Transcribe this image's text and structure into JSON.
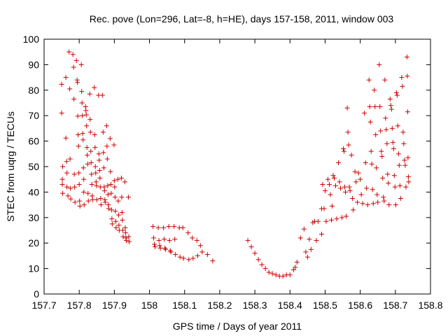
{
  "chart_data": {
    "type": "scatter",
    "title": "Rec. pove (Lon=296, Lat=-8, h=HE), days 157-158, 2011, window 003",
    "xlabel": "GPS time / Days of year 2011",
    "ylabel": "STEC from uqrg / TECUs",
    "xlim": [
      157.7,
      158.8
    ],
    "ylim": [
      0,
      100
    ],
    "xticks": [
      "157.7",
      "157.8",
      "157.9",
      "158",
      "158.1",
      "158.2",
      "158.3",
      "158.4",
      "158.5",
      "158.6",
      "158.7",
      "158.8"
    ],
    "yticks": [
      "0",
      "10",
      "20",
      "30",
      "40",
      "50",
      "60",
      "70",
      "80",
      "90",
      "100"
    ],
    "grid": false,
    "legend": "none",
    "marker": "plus",
    "color": "#cc0000",
    "series": [
      {
        "points": [
          [
            157.75,
            82.3
          ],
          [
            157.75,
            71.0
          ],
          [
            157.752,
            45.0
          ],
          [
            157.752,
            43.0
          ],
          [
            157.753,
            50.0
          ],
          [
            157.753,
            39.5
          ],
          [
            157.762,
            85.0
          ],
          [
            157.762,
            61.2
          ],
          [
            157.764,
            52.0
          ],
          [
            157.765,
            47.5
          ],
          [
            157.765,
            42.0
          ],
          [
            157.768,
            38.5
          ],
          [
            157.771,
            95.0
          ],
          [
            157.773,
            80.5
          ],
          [
            157.774,
            53.0
          ],
          [
            157.775,
            41.5
          ],
          [
            157.776,
            37.3
          ],
          [
            157.782,
            94.0
          ],
          [
            157.784,
            89.0
          ],
          [
            157.785,
            76.5
          ],
          [
            157.786,
            47.0
          ],
          [
            157.787,
            42.0
          ],
          [
            157.788,
            36.0
          ],
          [
            157.792,
            91.6
          ],
          [
            157.794,
            84.0
          ],
          [
            157.795,
            83.0
          ],
          [
            157.796,
            69.8
          ],
          [
            157.797,
            62.5
          ],
          [
            157.798,
            58.0
          ],
          [
            157.799,
            47.5
          ],
          [
            157.8,
            43.0
          ],
          [
            157.801,
            36.5
          ],
          [
            157.802,
            34.5
          ],
          [
            157.806,
            90.0
          ],
          [
            157.807,
            79.5
          ],
          [
            157.808,
            75.0
          ],
          [
            157.809,
            70.0
          ],
          [
            157.81,
            63.0
          ],
          [
            157.811,
            60.5
          ],
          [
            157.812,
            49.5
          ],
          [
            157.813,
            45.0
          ],
          [
            157.813,
            40.0
          ],
          [
            157.814,
            35.0
          ],
          [
            157.818,
            73.5
          ],
          [
            157.819,
            72.0
          ],
          [
            157.82,
            70.3
          ],
          [
            157.821,
            66.0
          ],
          [
            157.822,
            57.5
          ],
          [
            157.823,
            54.5
          ],
          [
            157.824,
            51.0
          ],
          [
            157.825,
            39.5
          ],
          [
            157.826,
            36.5
          ],
          [
            157.83,
            78.5
          ],
          [
            157.831,
            68.5
          ],
          [
            157.832,
            63.5
          ],
          [
            157.833,
            56.0
          ],
          [
            157.834,
            51.5
          ],
          [
            157.835,
            47.0
          ],
          [
            157.836,
            43.0
          ],
          [
            157.837,
            38.5
          ],
          [
            157.838,
            37.0
          ],
          [
            157.843,
            81.0
          ],
          [
            157.844,
            62.5
          ],
          [
            157.845,
            57.5
          ],
          [
            157.846,
            50.0
          ],
          [
            157.847,
            47.5
          ],
          [
            157.848,
            44.0
          ],
          [
            157.849,
            42.5
          ],
          [
            157.85,
            37.0
          ],
          [
            157.855,
            78.0
          ],
          [
            157.856,
            55.0
          ],
          [
            157.857,
            52.5
          ],
          [
            157.858,
            48.5
          ],
          [
            157.859,
            45.5
          ],
          [
            157.86,
            42.0
          ],
          [
            157.861,
            37.5
          ],
          [
            157.862,
            35.0
          ],
          [
            157.866,
            78.0
          ],
          [
            157.868,
            63.5
          ],
          [
            157.869,
            55.5
          ],
          [
            157.87,
            49.5
          ],
          [
            157.871,
            42.0
          ],
          [
            157.872,
            40.5
          ],
          [
            157.873,
            37.0
          ],
          [
            157.874,
            36.0
          ],
          [
            157.878,
            66.0
          ],
          [
            157.879,
            58.0
          ],
          [
            157.88,
            53.0
          ],
          [
            157.881,
            42.5
          ],
          [
            157.882,
            39.0
          ],
          [
            157.883,
            35.0
          ],
          [
            157.884,
            33.5
          ],
          [
            157.888,
            61.0
          ],
          [
            157.889,
            48.0
          ],
          [
            157.89,
            43.0
          ],
          [
            157.891,
            39.5
          ],
          [
            157.892,
            33.0
          ],
          [
            157.893,
            29.5
          ],
          [
            157.894,
            27.5
          ],
          [
            157.899,
            58.5
          ],
          [
            157.9,
            44.5
          ],
          [
            157.901,
            42.0
          ],
          [
            157.902,
            38.0
          ],
          [
            157.903,
            32.5
          ],
          [
            157.904,
            28.5
          ],
          [
            157.905,
            26.0
          ],
          [
            157.91,
            45.0
          ],
          [
            157.911,
            36.5
          ],
          [
            157.912,
            31.0
          ],
          [
            157.913,
            27.0
          ],
          [
            157.914,
            25.0
          ],
          [
            157.92,
            45.5
          ],
          [
            157.921,
            38.0
          ],
          [
            157.922,
            32.0
          ],
          [
            157.923,
            29.0
          ],
          [
            157.924,
            25.0
          ],
          [
            157.925,
            22.5
          ],
          [
            157.93,
            44.0
          ],
          [
            157.931,
            26.0
          ],
          [
            157.932,
            24.0
          ],
          [
            157.933,
            22.0
          ],
          [
            157.934,
            21.0
          ],
          [
            157.94,
            38.0
          ],
          [
            157.941,
            22.5
          ],
          [
            157.942,
            20.5
          ],
          [
            158.01,
            26.5
          ],
          [
            158.012,
            22.0
          ],
          [
            158.014,
            19.5
          ],
          [
            158.016,
            18.5
          ],
          [
            158.025,
            26.0
          ],
          [
            158.027,
            21.0
          ],
          [
            158.029,
            19.0
          ],
          [
            158.031,
            18.0
          ],
          [
            158.04,
            26.0
          ],
          [
            158.042,
            21.5
          ],
          [
            158.044,
            18.0
          ],
          [
            158.046,
            17.5
          ],
          [
            158.055,
            26.5
          ],
          [
            158.057,
            21.0
          ],
          [
            158.059,
            17.0
          ],
          [
            158.061,
            16.5
          ],
          [
            158.07,
            26.5
          ],
          [
            158.072,
            21.5
          ],
          [
            158.074,
            15.5
          ],
          [
            158.085,
            26.0
          ],
          [
            158.087,
            14.5
          ],
          [
            158.095,
            26.0
          ],
          [
            158.097,
            14.0
          ],
          [
            158.11,
            24.0
          ],
          [
            158.112,
            13.5
          ],
          [
            158.122,
            22.0
          ],
          [
            158.124,
            14.0
          ],
          [
            158.135,
            21.0
          ],
          [
            158.137,
            15.0
          ],
          [
            158.145,
            19.0
          ],
          [
            158.15,
            16.5
          ],
          [
            158.165,
            15.5
          ],
          [
            158.18,
            13.0
          ],
          [
            158.28,
            21.0
          ],
          [
            158.29,
            18.5
          ],
          [
            158.3,
            16.0
          ],
          [
            158.31,
            13.5
          ],
          [
            158.32,
            11.5
          ],
          [
            158.33,
            10.0
          ],
          [
            158.34,
            8.5
          ],
          [
            158.35,
            8.0
          ],
          [
            158.36,
            7.5
          ],
          [
            158.37,
            7.0
          ],
          [
            158.38,
            7.0
          ],
          [
            158.39,
            7.5
          ],
          [
            158.4,
            7.5
          ],
          [
            158.41,
            9.5
          ],
          [
            158.415,
            10.5
          ],
          [
            158.42,
            12.5
          ],
          [
            158.43,
            22.0
          ],
          [
            158.44,
            25.5
          ],
          [
            158.445,
            16.5
          ],
          [
            158.45,
            14.5
          ],
          [
            158.455,
            21.5
          ],
          [
            158.46,
            17.5
          ],
          [
            158.465,
            28.0
          ],
          [
            158.47,
            28.5
          ],
          [
            158.475,
            21.0
          ],
          [
            158.48,
            28.5
          ],
          [
            158.49,
            23.5
          ],
          [
            158.49,
            33.5
          ],
          [
            158.493,
            43.0
          ],
          [
            158.497,
            33.5
          ],
          [
            158.5,
            40.5
          ],
          [
            158.503,
            28.5
          ],
          [
            158.508,
            45.0
          ],
          [
            158.512,
            43.0
          ],
          [
            158.515,
            39.0
          ],
          [
            158.518,
            29.0
          ],
          [
            158.52,
            34.5
          ],
          [
            158.523,
            46.5
          ],
          [
            158.526,
            45.5
          ],
          [
            158.53,
            42.5
          ],
          [
            158.533,
            29.5
          ],
          [
            158.538,
            51.5
          ],
          [
            158.541,
            44.0
          ],
          [
            158.544,
            41.5
          ],
          [
            158.548,
            30.0
          ],
          [
            158.552,
            57.0
          ],
          [
            158.554,
            56.0
          ],
          [
            158.556,
            42.0
          ],
          [
            158.558,
            40.0
          ],
          [
            158.56,
            30.5
          ],
          [
            158.563,
            73.0
          ],
          [
            158.565,
            63.5
          ],
          [
            158.567,
            58.5
          ],
          [
            158.569,
            42.0
          ],
          [
            158.571,
            40.5
          ],
          [
            158.575,
            54.5
          ],
          [
            158.578,
            37.5
          ],
          [
            158.58,
            33.0
          ],
          [
            158.585,
            48.0
          ],
          [
            158.588,
            44.0
          ],
          [
            158.592,
            36.0
          ],
          [
            158.595,
            47.5
          ],
          [
            158.6,
            45.0
          ],
          [
            158.603,
            39.0
          ],
          [
            158.607,
            35.5
          ],
          [
            158.612,
            71.0
          ],
          [
            158.615,
            51.5
          ],
          [
            158.618,
            41.5
          ],
          [
            158.621,
            35.0
          ],
          [
            158.625,
            84.0
          ],
          [
            158.627,
            73.5
          ],
          [
            158.629,
            67.5
          ],
          [
            158.631,
            56.0
          ],
          [
            158.633,
            51.0
          ],
          [
            158.635,
            41.0
          ],
          [
            158.637,
            35.5
          ],
          [
            158.64,
            80.0
          ],
          [
            158.642,
            73.5
          ],
          [
            158.644,
            62.5
          ],
          [
            158.646,
            49.5
          ],
          [
            158.648,
            39.0
          ],
          [
            158.65,
            36.0
          ],
          [
            158.654,
            90.0
          ],
          [
            158.656,
            73.5
          ],
          [
            158.658,
            64.0
          ],
          [
            158.66,
            56.0
          ],
          [
            158.662,
            54.0
          ],
          [
            158.664,
            45.5
          ],
          [
            158.666,
            38.0
          ],
          [
            158.668,
            36.5
          ],
          [
            158.67,
            84.0
          ],
          [
            158.672,
            69.0
          ],
          [
            158.674,
            64.5
          ],
          [
            158.676,
            59.0
          ],
          [
            158.678,
            47.0
          ],
          [
            158.68,
            43.5
          ],
          [
            158.682,
            35.0
          ],
          [
            158.685,
            76.5
          ],
          [
            158.687,
            74.0
          ],
          [
            158.689,
            72.5
          ],
          [
            158.691,
            65.0
          ],
          [
            158.693,
            59.5
          ],
          [
            158.695,
            57.0
          ],
          [
            158.697,
            46.5
          ],
          [
            158.699,
            42.0
          ],
          [
            158.701,
            35.0
          ],
          [
            158.703,
            79.0
          ],
          [
            158.705,
            78.0
          ],
          [
            158.707,
            66.0
          ],
          [
            158.709,
            55.0
          ],
          [
            158.711,
            50.5
          ],
          [
            158.713,
            42.5
          ],
          [
            158.715,
            37.5
          ],
          [
            158.718,
            85.0
          ],
          [
            158.72,
            81.5
          ],
          [
            158.722,
            63.5
          ],
          [
            158.724,
            59.0
          ],
          [
            158.726,
            52.5
          ],
          [
            158.728,
            50.5
          ],
          [
            158.73,
            42.0
          ],
          [
            158.733,
            93.0
          ],
          [
            158.734,
            85.5
          ],
          [
            158.735,
            71.5
          ],
          [
            158.736,
            53.5
          ],
          [
            158.737,
            46.0
          ],
          [
            158.738,
            44.0
          ]
        ]
      }
    ]
  }
}
